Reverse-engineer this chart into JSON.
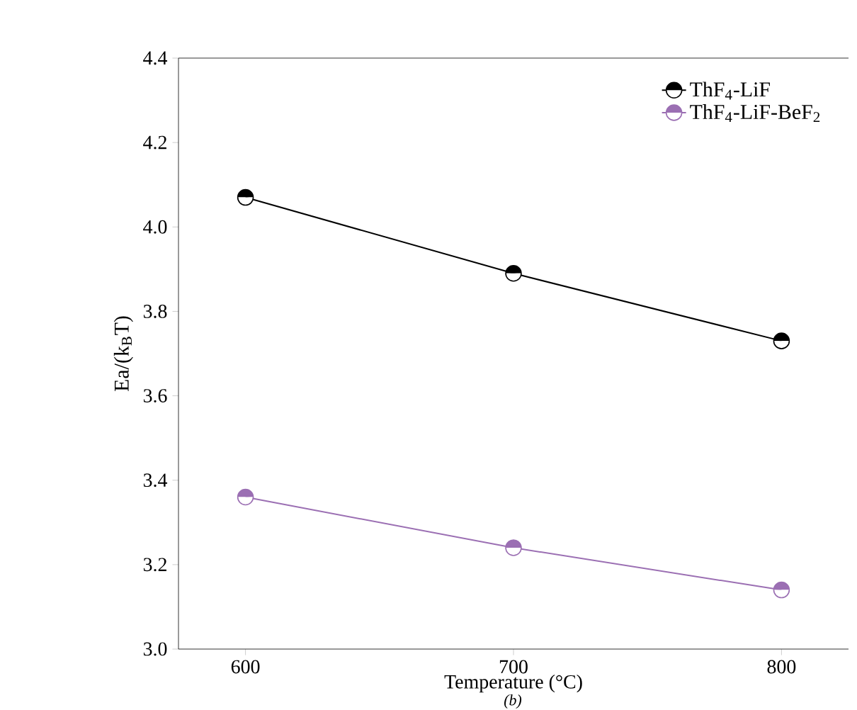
{
  "chart_data": {
    "type": "line",
    "xlabel": "Temperature (°C)",
    "ylabel": "Ea/(k$_{B}$T)",
    "annotations": [
      "(b)"
    ],
    "x": [
      600,
      700,
      800
    ],
    "series": [
      {
        "name": "ThF$_{4}$-LiF",
        "color": "#000000",
        "values": [
          4.07,
          3.89,
          3.73
        ]
      },
      {
        "name": "ThF$_{4}$-LiF-BeF$_{2}$",
        "color": "#9b6fb3",
        "values": [
          3.36,
          3.24,
          3.14
        ]
      }
    ],
    "xlim": [
      575,
      825
    ],
    "ylim": [
      3.0,
      4.4
    ],
    "xticks": [
      600,
      700,
      800
    ],
    "yticks": [
      {
        "value": 3.0,
        "label": "3.0"
      },
      3.2,
      3.4,
      3.6,
      3.8,
      {
        "value": 4.0,
        "label": "4.0"
      },
      4.2,
      4.4
    ],
    "grid": false,
    "legend": "top right",
    "marker": "circle",
    "line_style": "solid"
  }
}
